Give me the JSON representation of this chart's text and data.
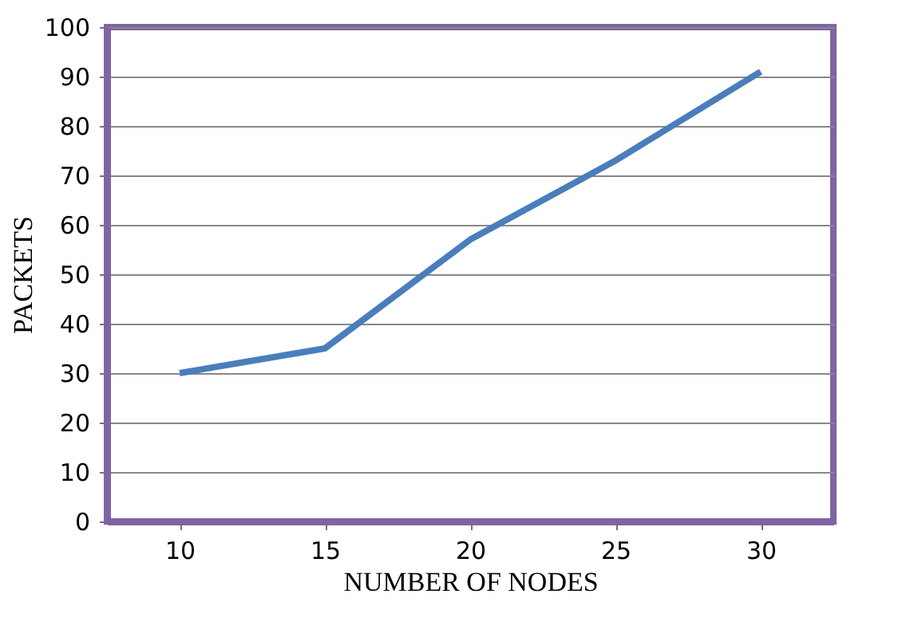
{
  "chart_data": {
    "type": "line",
    "xlabel": "NUMBER OF NODES",
    "ylabel": "PACKETS",
    "categories": [
      "10",
      "15",
      "20",
      "25",
      "30"
    ],
    "series": [
      {
        "color": "#4a7ebb",
        "values": [
          30,
          35,
          57,
          73,
          91
        ]
      }
    ],
    "ylim": [
      0,
      100
    ],
    "yticks": [
      0,
      10,
      20,
      30,
      40,
      50,
      60,
      70,
      80,
      90,
      100
    ],
    "grid": "y",
    "marker": "none",
    "line_style": "solid"
  }
}
